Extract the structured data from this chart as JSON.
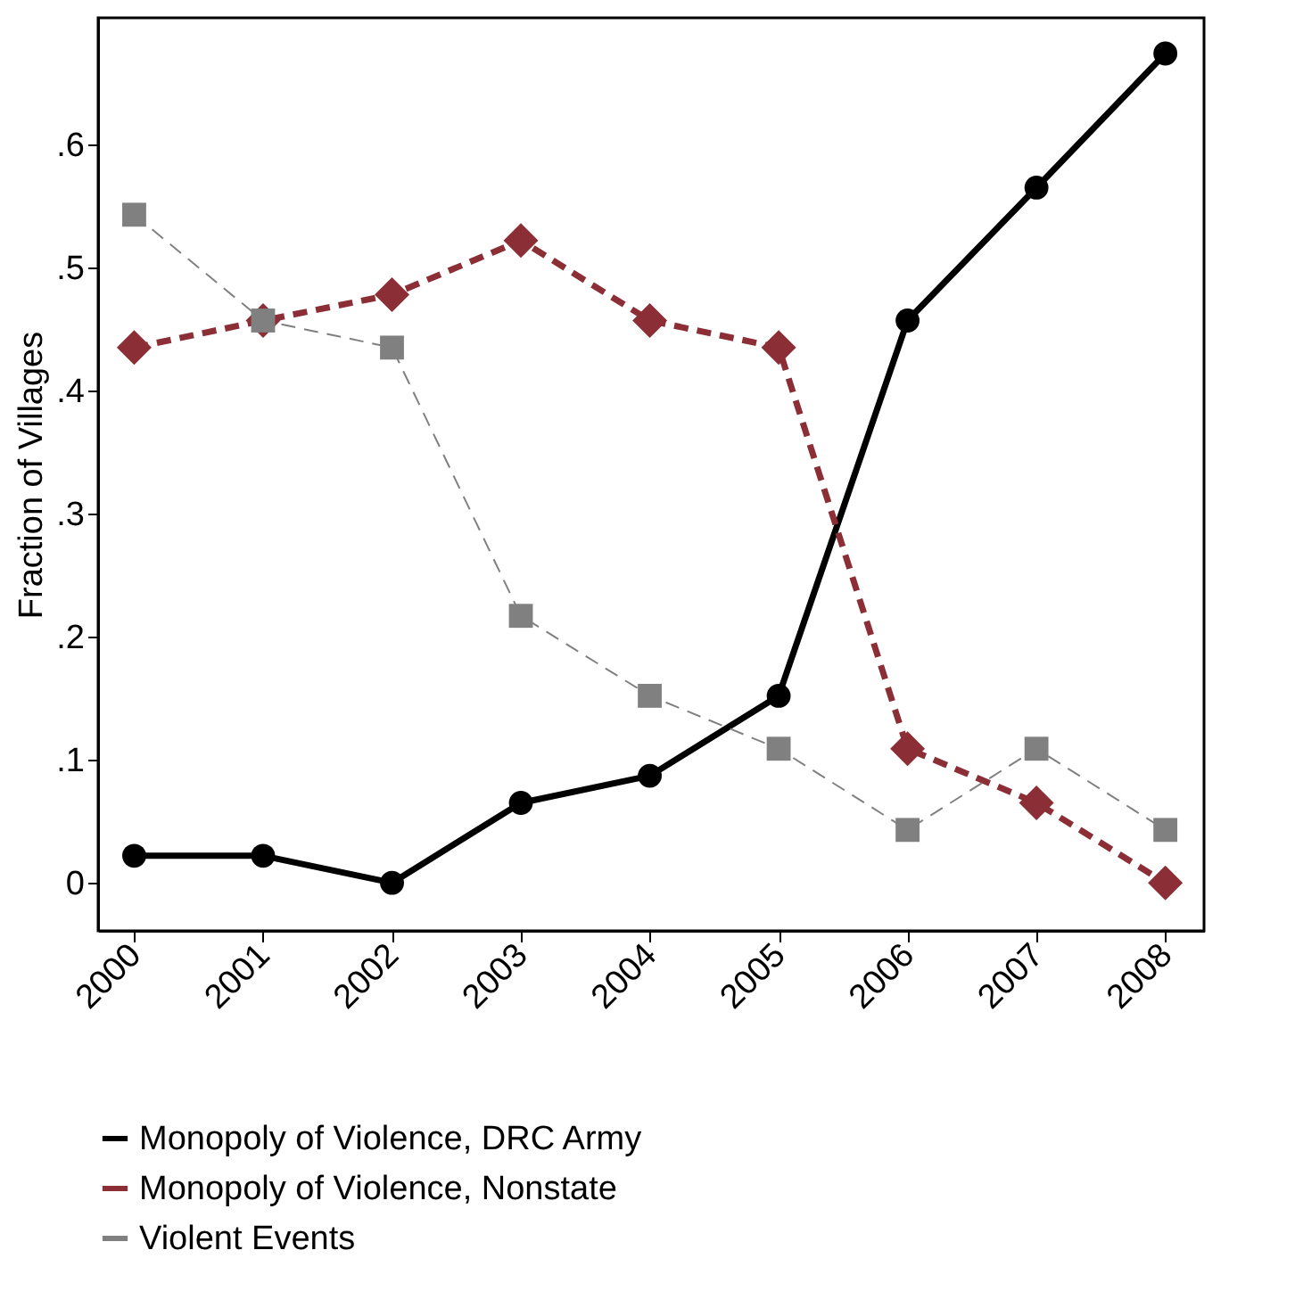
{
  "chart_data": {
    "type": "line",
    "ylabel": "Fraction of Villages",
    "x": [
      2000,
      2001,
      2002,
      2003,
      2004,
      2005,
      2006,
      2007,
      2008
    ],
    "xlim": [
      1999.72,
      2008.3
    ],
    "xticks": [
      2000,
      2001,
      2002,
      2003,
      2004,
      2005,
      2006,
      2007,
      2008
    ],
    "ylim": [
      -0.039,
      0.703
    ],
    "yticks": [
      0,
      {
        "value": 0.1,
        "label": ".1"
      },
      {
        "value": 0.2,
        "label": ".2"
      },
      {
        "value": 0.3,
        "label": ".3"
      },
      {
        "value": 0.4,
        "label": ".4"
      },
      {
        "value": 0.5,
        "label": ".5"
      },
      {
        "value": 0.6,
        "label": ".6"
      }
    ],
    "grid": false,
    "legend": "bottom",
    "series": [
      {
        "name": "Monopoly of Violence, DRC Army",
        "color": "#000000",
        "marker": "circle",
        "line_style": "solid",
        "values": [
          0.022,
          0.022,
          0,
          0.065,
          0.087,
          0.152,
          0.457,
          0.565,
          0.674
        ]
      },
      {
        "name": "Monopoly of Violence, Nonstate",
        "color": "#8b2e35",
        "marker": "diamond",
        "line_style": "dashed",
        "values": [
          0.435,
          0.457,
          0.478,
          0.522,
          0.457,
          0.435,
          0.109,
          0.065,
          0
        ]
      },
      {
        "name": "Violent Events",
        "color": "#808080",
        "marker": "square",
        "line_style": "dashed",
        "values": [
          0.543,
          0.457,
          0.435,
          0.217,
          0.152,
          0.109,
          0.043,
          0.109,
          0.043
        ]
      }
    ]
  }
}
